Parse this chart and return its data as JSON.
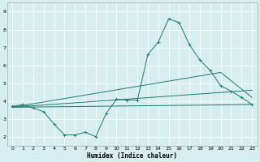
{
  "xlabel": "Humidex (Indice chaleur)",
  "bg_color": "#d6eeee",
  "grid_color": "#ffffff",
  "line_color": "#1a7a6e",
  "xlim": [
    -0.5,
    23.5
  ],
  "ylim": [
    1.5,
    9.5
  ],
  "xticks": [
    0,
    1,
    2,
    3,
    4,
    5,
    6,
    7,
    8,
    9,
    10,
    11,
    12,
    13,
    14,
    15,
    16,
    17,
    18,
    19,
    20,
    21,
    22,
    23
  ],
  "yticks": [
    2,
    3,
    4,
    5,
    6,
    7,
    8,
    9
  ],
  "series1_x": [
    0,
    1,
    2,
    3,
    4,
    5,
    6,
    7,
    8,
    9,
    10,
    11,
    12,
    13,
    14,
    15,
    16,
    17,
    18,
    19,
    20,
    21,
    22,
    23
  ],
  "series1_y": [
    3.7,
    3.8,
    3.6,
    3.4,
    2.7,
    2.1,
    2.1,
    2.25,
    2.0,
    3.3,
    4.1,
    4.05,
    4.05,
    6.6,
    7.3,
    8.6,
    8.4,
    7.15,
    6.3,
    5.7,
    4.85,
    4.55,
    4.2,
    3.8
  ],
  "series2_x": [
    0,
    23
  ],
  "series2_y": [
    3.65,
    3.8
  ],
  "series3_x": [
    0,
    23
  ],
  "series3_y": [
    3.65,
    4.6
  ],
  "series4_x": [
    0,
    20,
    23
  ],
  "series4_y": [
    3.65,
    5.6,
    4.2
  ]
}
